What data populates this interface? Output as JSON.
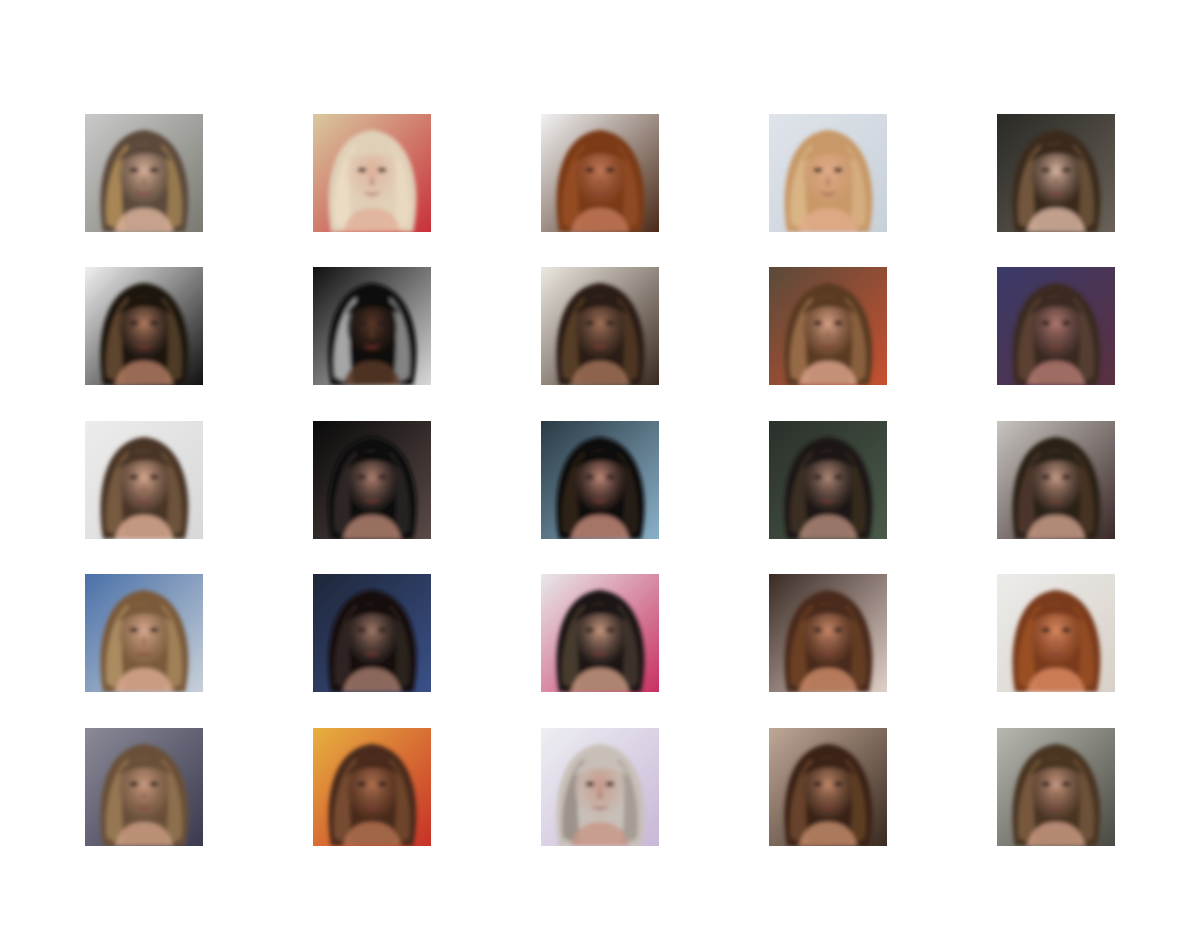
{
  "figure": {
    "rows": 5,
    "cols": 5,
    "samples": [
      {
        "subject": "face",
        "bg": "#c9c9c9",
        "bg2": "#7a7a72",
        "hair": "#5b4a3a",
        "hair2": "#c9a060",
        "skin": "#d9b09a"
      },
      {
        "subject": "face",
        "bg": "#d9c9a0",
        "bg2": "#c8303a",
        "hair": "#e0d0b8",
        "hair2": "#f0e0c8",
        "skin": "#e0b09a"
      },
      {
        "subject": "face",
        "bg": "#f2f2f2",
        "bg2": "#4a2a18",
        "hair": "#7a3a18",
        "hair2": "#a05428",
        "skin": "#c07858"
      },
      {
        "subject": "face",
        "bg": "#dfe4ea",
        "bg2": "#c8d0d8",
        "hair": "#c89868",
        "hair2": "#e0c090",
        "skin": "#e0aa8a"
      },
      {
        "subject": "face",
        "bg": "#2a2a26",
        "bg2": "#6a6258",
        "hair": "#3a2a1e",
        "hair2": "#8a6a48",
        "skin": "#d8b4a0"
      },
      {
        "subject": "face",
        "bg": "#f0f0f0",
        "bg2": "#101010",
        "hair": "#1a1410",
        "hair2": "#7a5a3a",
        "skin": "#b07a60"
      },
      {
        "subject": "face",
        "bg": "#101010",
        "bg2": "#d8d8d8",
        "hair": "#0a0a0a",
        "hair2": "#e8e8e8",
        "skin": "#5a3828"
      },
      {
        "subject": "face",
        "bg": "#ece8e0",
        "bg2": "#3a2a20",
        "hair": "#2a1e16",
        "hair2": "#6a4a30",
        "skin": "#a07058"
      },
      {
        "subject": "face",
        "bg": "#5a4a3a",
        "bg2": "#c85030",
        "hair": "#5a3a20",
        "hair2": "#b08058",
        "skin": "#d8a088"
      },
      {
        "subject": "face",
        "bg": "#3a3a6a",
        "bg2": "#5a3040",
        "hair": "#3a2a24",
        "hair2": "#6a4a3a",
        "skin": "#b07870"
      },
      {
        "subject": "face",
        "bg": "#ececec",
        "bg2": "#d8d8d8",
        "hair": "#4a3628",
        "hair2": "#8a6a4a",
        "skin": "#d8a890"
      },
      {
        "subject": "face",
        "bg": "#0a0a0a",
        "bg2": "#5a4a48",
        "hair": "#101010",
        "hair2": "#3a3030",
        "skin": "#b08070"
      },
      {
        "subject": "face",
        "bg": "#2a3a44",
        "bg2": "#8ab0c8",
        "hair": "#100c0a",
        "hair2": "#3a2a20",
        "skin": "#c08878"
      },
      {
        "subject": "face",
        "bg": "#2a302a",
        "bg2": "#4a5a4a",
        "hair": "#1a1612",
        "hair2": "#4a3a2a",
        "skin": "#b08878"
      },
      {
        "subject": "face",
        "bg": "#c8c4c0",
        "bg2": "#3a2a2a",
        "hair": "#2a2018",
        "hair2": "#5a4030",
        "skin": "#c89c88"
      },
      {
        "subject": "face",
        "bg": "#4a70a8",
        "bg2": "#c8d0d8",
        "hair": "#7a5a3a",
        "hair2": "#c0a070",
        "skin": "#d8a890"
      },
      {
        "subject": "face",
        "bg": "#1e2638",
        "bg2": "#3a5088",
        "hair": "#141010",
        "hair2": "#3a2e28",
        "skin": "#a07868"
      },
      {
        "subject": "face",
        "bg": "#e8e8ea",
        "bg2": "#c83060",
        "hair": "#1a1614",
        "hair2": "#5a4a3a",
        "skin": "#c89880"
      },
      {
        "subject": "face",
        "bg": "#3a2a24",
        "bg2": "#e0d0c8",
        "hair": "#4a2a1a",
        "hair2": "#7a4a2a",
        "skin": "#c88868"
      },
      {
        "subject": "face",
        "bg": "#ececea",
        "bg2": "#d8d0c8",
        "hair": "#7a3a1a",
        "hair2": "#a85a2a",
        "skin": "#d88860"
      },
      {
        "subject": "face",
        "bg": "#8a8a98",
        "bg2": "#3a3a50",
        "hair": "#6a5038",
        "hair2": "#a88860",
        "skin": "#c89a80"
      },
      {
        "subject": "face",
        "bg": "#e8b040",
        "bg2": "#c83028",
        "hair": "#4a2a1a",
        "hair2": "#8a5a3a",
        "skin": "#b07050"
      },
      {
        "subject": "face",
        "bg": "#eeeef2",
        "bg2": "#c8b8d8",
        "hair": "#c8c0b8",
        "hair2": "#8a8078",
        "skin": "#c89888"
      },
      {
        "subject": "face",
        "bg": "#c0a898",
        "bg2": "#3a2a20",
        "hair": "#3a2418",
        "hair2": "#7a5030",
        "skin": "#c08868"
      },
      {
        "subject": "face",
        "bg": "#b8b8b0",
        "bg2": "#4a4a44",
        "hair": "#4a3424",
        "hair2": "#8a6a48",
        "skin": "#c89880"
      }
    ]
  }
}
